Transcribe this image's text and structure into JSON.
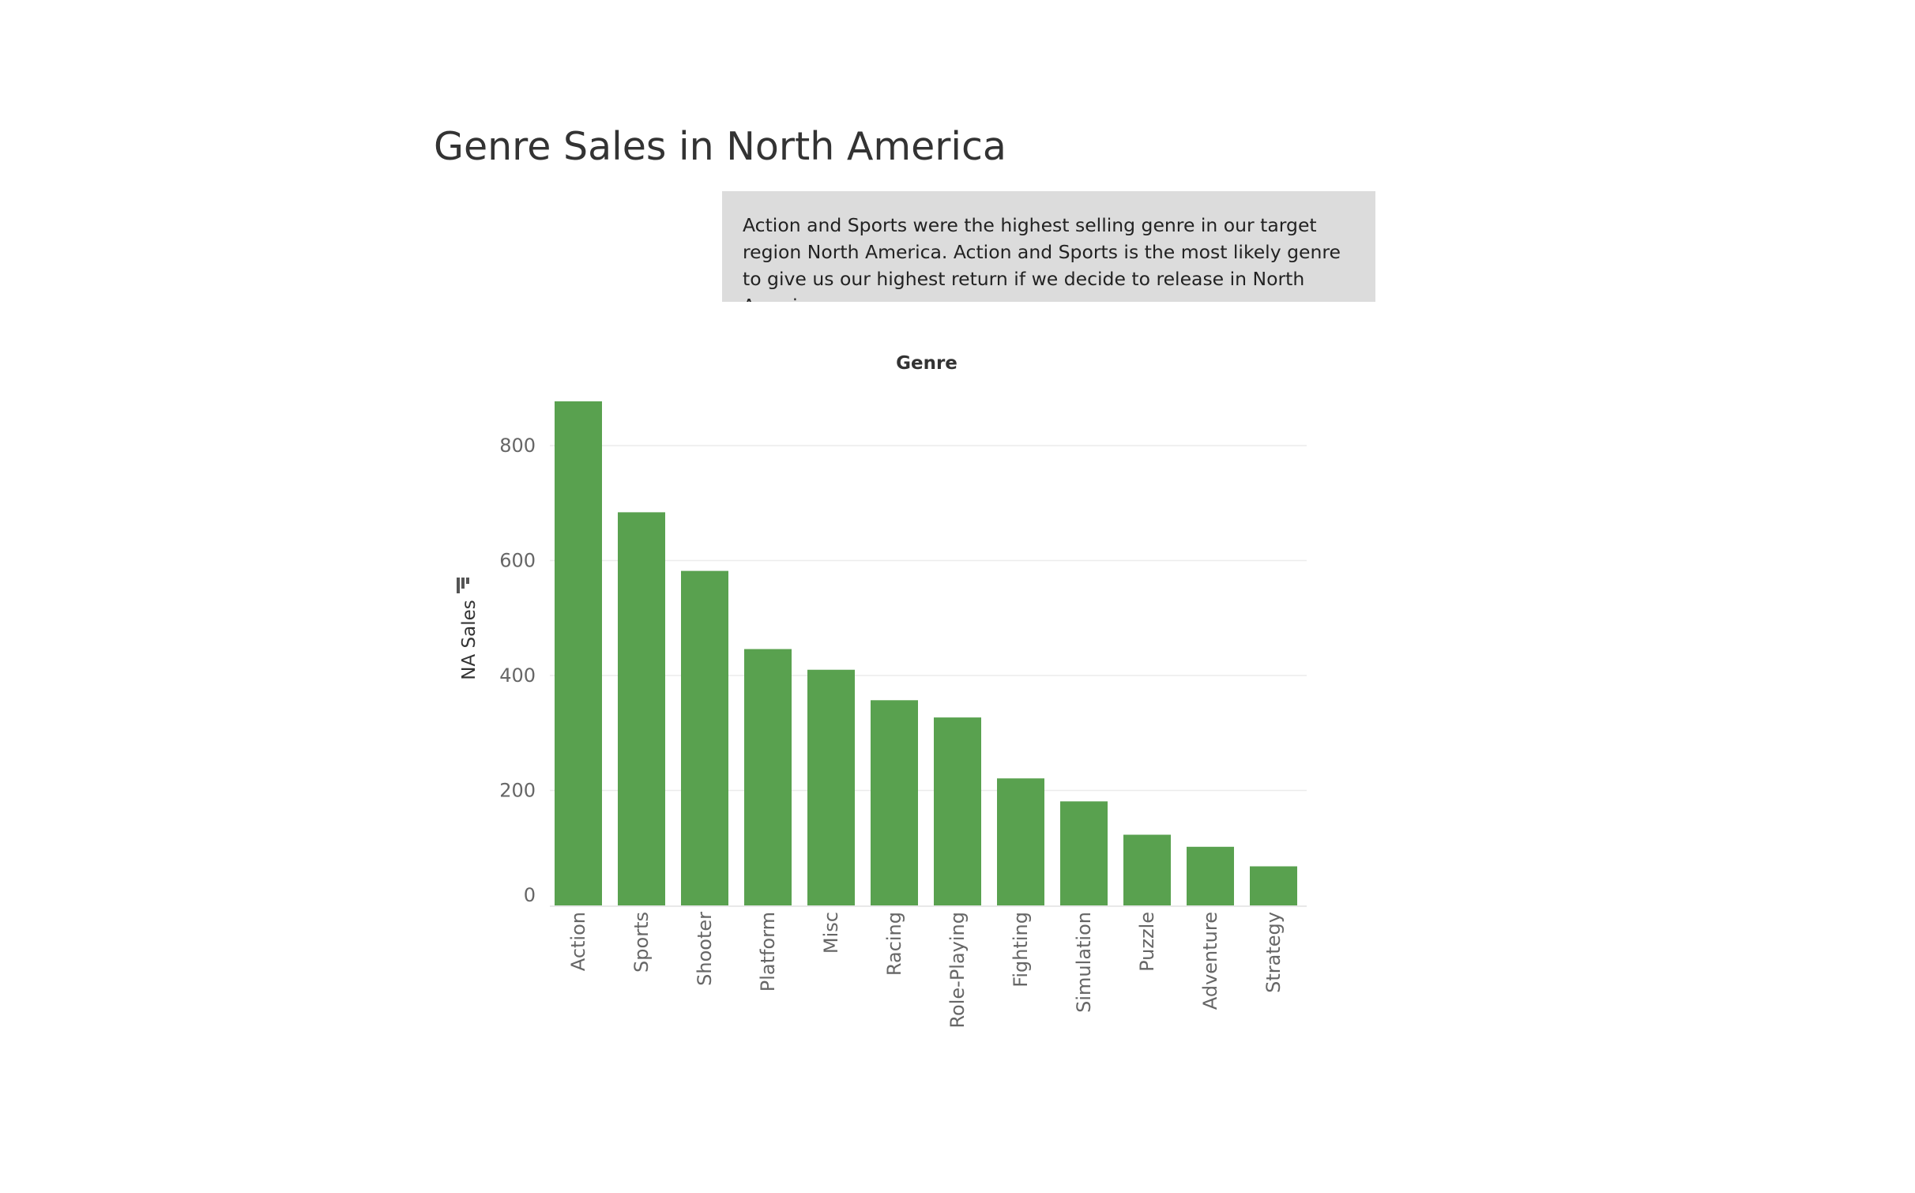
{
  "page": {
    "title": "Genre Sales in North America"
  },
  "annotation": {
    "text": "Action and Sports were the highest selling genre in our target region North America. Action and Sports is the most likely genre to give us our highest return if we decide to release in North America."
  },
  "chart_data": {
    "type": "bar",
    "title": "Genre Sales in North America",
    "xlabel": "Genre",
    "ylabel": "NA Sales",
    "categories": [
      "Action",
      "Sports",
      "Shooter",
      "Platform",
      "Misc",
      "Racing",
      "Role-Playing",
      "Fighting",
      "Simulation",
      "Puzzle",
      "Adventure",
      "Strategy"
    ],
    "values": [
      877,
      684,
      582,
      446,
      410,
      357,
      327,
      221,
      181,
      123,
      102,
      68
    ],
    "yticks": [
      0,
      200,
      400,
      600,
      800
    ],
    "ylim": [
      0,
      900
    ],
    "grid": true,
    "colors": {
      "bar": "#59a14f",
      "grid": "#ececec",
      "axis": "#e0e0e0"
    },
    "sort_icon": "sort-descending-icon"
  }
}
